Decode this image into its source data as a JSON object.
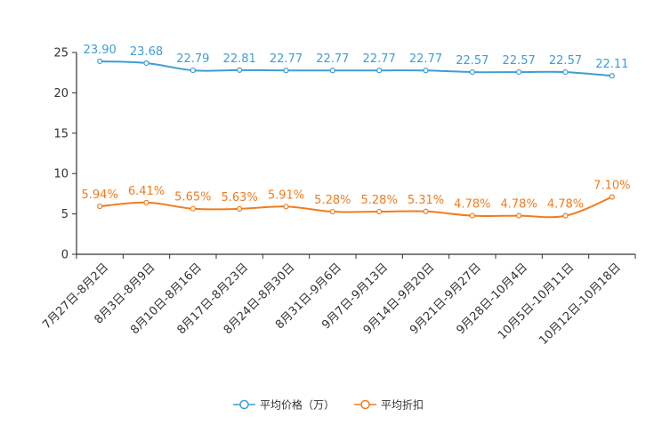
{
  "chart_data": {
    "type": "line",
    "title": "",
    "xlabel": "",
    "ylabel": "",
    "ylim": [
      0,
      25
    ],
    "yticks": [
      0,
      5,
      10,
      15,
      20,
      25
    ],
    "grid": false,
    "legend_position": "bottom-center",
    "categories": [
      "7月27日-8月2日",
      "8月3日-8月9日",
      "8月10日-8月16日",
      "8月17日-8月23日",
      "8月24日-8月30日",
      "8月31日-9月6日",
      "9月7日-9月13日",
      "9月14日-9月20日",
      "9月21日-9月27日",
      "9月28日-10月4日",
      "10月5日-10月11日",
      "10月12日-10月18日"
    ],
    "series": [
      {
        "name": "平均价格（万）",
        "color": "#3e9dd6",
        "values": [
          23.9,
          23.68,
          22.79,
          22.81,
          22.77,
          22.77,
          22.77,
          22.77,
          22.57,
          22.57,
          22.57,
          22.11
        ],
        "labels": [
          "23.90",
          "23.68",
          "22.79",
          "22.81",
          "22.77",
          "22.77",
          "22.77",
          "22.77",
          "22.57",
          "22.57",
          "22.57",
          "22.11"
        ]
      },
      {
        "name": "平均折扣",
        "color": "#f07c1e",
        "values": [
          5.94,
          6.41,
          5.65,
          5.63,
          5.91,
          5.28,
          5.28,
          5.31,
          4.78,
          4.78,
          4.78,
          7.1
        ],
        "labels": [
          "5.94%",
          "6.41%",
          "5.65%",
          "5.63%",
          "5.91%",
          "5.28%",
          "5.28%",
          "5.31%",
          "4.78%",
          "4.78%",
          "4.78%",
          "7.10%"
        ]
      }
    ]
  }
}
